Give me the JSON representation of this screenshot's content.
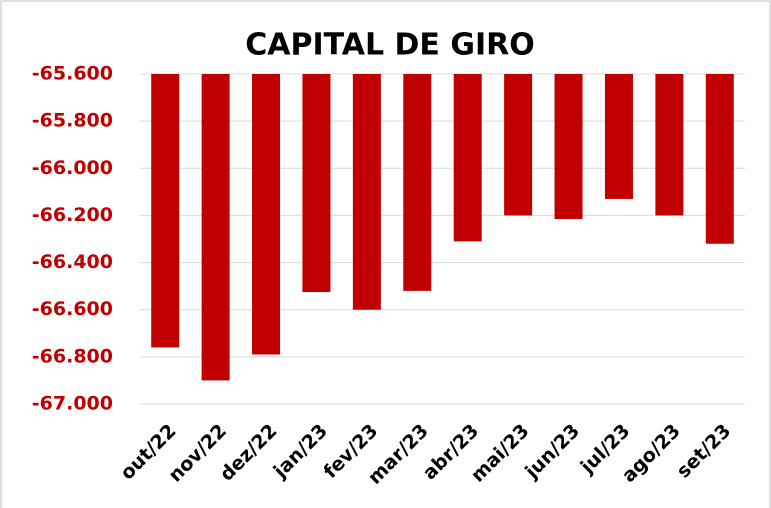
{
  "chart_data": {
    "type": "bar",
    "title": "CAPITAL DE GIRO",
    "categories": [
      "out/22",
      "nov/22",
      "dez/22",
      "jan/23",
      "fev/23",
      "mar/23",
      "abr/23",
      "mai/23",
      "jun/23",
      "jul/23",
      "ago/23",
      "set/23"
    ],
    "values": [
      -66760,
      -66900,
      -66790,
      -66525,
      -66600,
      -66520,
      -66310,
      -66200,
      -66215,
      -66130,
      -66200,
      -66320
    ],
    "color": "#c00000",
    "ylim": [
      -67000,
      -65600
    ],
    "yticks": [
      {
        "value": -65600,
        "label": "-65.600"
      },
      {
        "value": -65800,
        "label": "-65.800"
      },
      {
        "value": -66000,
        "label": "-66.000"
      },
      {
        "value": -66200,
        "label": "-66.200"
      },
      {
        "value": -66400,
        "label": "-66.400"
      },
      {
        "value": -66600,
        "label": "-66.600"
      },
      {
        "value": -66800,
        "label": "-66.800"
      },
      {
        "value": -67000,
        "label": "-67.000"
      }
    ],
    "grid": true
  }
}
